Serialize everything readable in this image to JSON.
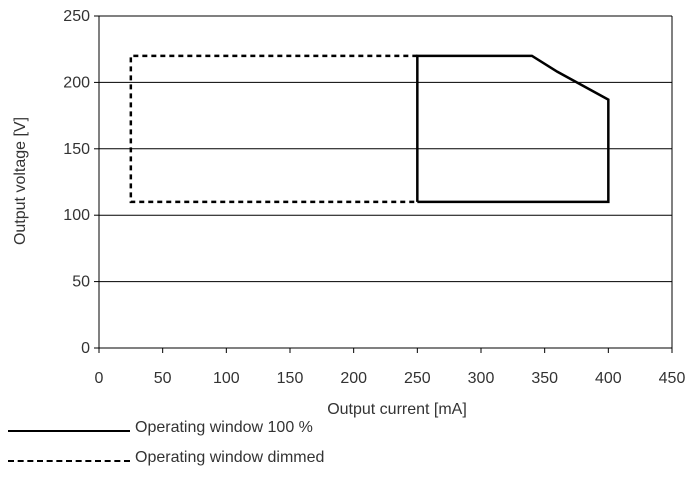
{
  "chart_data": {
    "type": "line",
    "xlabel": "Output current [mA]",
    "ylabel": "Output voltage [V]",
    "xlim": [
      0,
      450
    ],
    "ylim": [
      0,
      250
    ],
    "xticks": [
      0,
      50,
      100,
      150,
      200,
      250,
      300,
      350,
      400,
      450
    ],
    "yticks": [
      0,
      50,
      100,
      150,
      200,
      250
    ],
    "grid": "horizontal",
    "legend_position": "bottom",
    "series": [
      {
        "name": "Operating window 100 %",
        "style": "solid",
        "color": "#000000",
        "points": [
          [
            250,
            110
          ],
          [
            250,
            220
          ],
          [
            340,
            220
          ],
          [
            360,
            208
          ],
          [
            400,
            187
          ],
          [
            400,
            110
          ],
          [
            250,
            110
          ]
        ]
      },
      {
        "name": "Operating window dimmed",
        "style": "dashed",
        "color": "#000000",
        "points": [
          [
            250,
            220
          ],
          [
            25,
            220
          ],
          [
            25,
            110
          ],
          [
            250,
            110
          ]
        ]
      }
    ]
  }
}
